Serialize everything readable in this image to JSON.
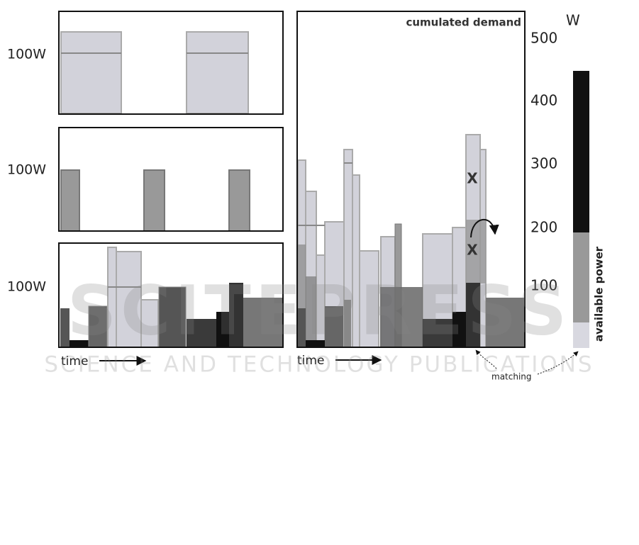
{
  "panels": [
    {
      "label": "100W"
    },
    {
      "label": "100W"
    },
    {
      "label": "100W",
      "time": "time"
    }
  ],
  "cumulated": {
    "title": "cumulated demand",
    "unit": "W",
    "axis": [
      "500",
      "400",
      "300",
      "200",
      "100"
    ],
    "marks": [
      "X",
      "X"
    ],
    "time": "time"
  },
  "legend": {
    "label": "available power"
  },
  "annotation": "matching",
  "watermark": {
    "title": "SCITEPRESS",
    "subtitle": "SCIENCE AND TECHNOLOGY PUBLICATIONS"
  }
}
